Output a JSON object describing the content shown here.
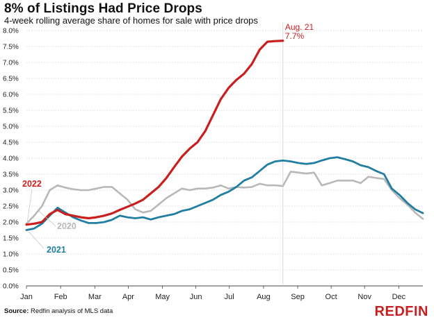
{
  "header": {
    "title": "8% of Listings Had Price Drops",
    "subtitle": "4-week rolling average share of homes for sale with price drops"
  },
  "footer": {
    "source_label": "Source:",
    "source_text": " Redfin analysis of MLS data",
    "logo_text": "REDFIN"
  },
  "colors": {
    "2022": "#c81e1e",
    "2021": "#1f7ea1",
    "2020": "#b8b8b8",
    "grid": "#d0d0d0",
    "axis": "#444444"
  },
  "chart_data": {
    "type": "line",
    "title": "8% of Listings Had Price Drops",
    "subtitle": "4-week rolling average share of homes for sale with price drops",
    "xlabel": "",
    "ylabel": "",
    "x_unit": "week_of_year",
    "xlim": [
      1,
      52
    ],
    "ylim": [
      0,
      8
    ],
    "grid": true,
    "legend": "inline-labels",
    "x_ticks": [
      {
        "label": "Jan",
        "x": 1
      },
      {
        "label": "Feb",
        "x": 5.4
      },
      {
        "label": "Mar",
        "x": 9.8
      },
      {
        "label": "Apr",
        "x": 14.1
      },
      {
        "label": "May",
        "x": 18.5
      },
      {
        "label": "Jun",
        "x": 22.8
      },
      {
        "label": "Jul",
        "x": 27.1
      },
      {
        "label": "Aug",
        "x": 31.5
      },
      {
        "label": "Sep",
        "x": 35.9
      },
      {
        "label": "Oct",
        "x": 40.2
      },
      {
        "label": "Nov",
        "x": 44.5
      },
      {
        "label": "Dec",
        "x": 48.9
      }
    ],
    "y_ticks": [
      "0.0%",
      "0.5%",
      "1.0%",
      "1.5%",
      "2.0%",
      "2.5%",
      "3.0%",
      "3.5%",
      "4.0%",
      "4.5%",
      "5.0%",
      "5.5%",
      "6.0%",
      "6.5%",
      "7.0%",
      "7.5%",
      "8.0%"
    ],
    "y_tick_values": [
      0,
      0.5,
      1,
      1.5,
      2,
      2.5,
      3,
      3.5,
      4,
      4.5,
      5,
      5.5,
      6,
      6.5,
      7,
      7.5,
      8
    ],
    "series": [
      {
        "name": "2020",
        "color": "#b8b8b8",
        "points": [
          [
            1,
            1.95
          ],
          [
            2,
            2.2
          ],
          [
            3,
            2.5
          ],
          [
            4,
            3.0
          ],
          [
            5,
            3.15
          ],
          [
            6,
            3.08
          ],
          [
            7,
            3.03
          ],
          [
            8,
            3.0
          ],
          [
            9,
            3.0
          ],
          [
            10,
            3.05
          ],
          [
            11,
            3.1
          ],
          [
            12,
            3.1
          ],
          [
            13,
            2.9
          ],
          [
            14,
            2.7
          ],
          [
            15,
            2.4
          ],
          [
            16,
            2.3
          ],
          [
            17,
            2.35
          ],
          [
            18,
            2.55
          ],
          [
            19,
            2.75
          ],
          [
            20,
            2.9
          ],
          [
            21,
            3.05
          ],
          [
            22,
            3.0
          ],
          [
            23,
            3.05
          ],
          [
            24,
            3.05
          ],
          [
            25,
            3.08
          ],
          [
            26,
            3.15
          ],
          [
            27,
            3.05
          ],
          [
            28,
            3.1
          ],
          [
            29,
            3.08
          ],
          [
            30,
            3.1
          ],
          [
            31,
            3.2
          ],
          [
            32,
            3.15
          ],
          [
            33,
            3.15
          ],
          [
            34,
            3.13
          ],
          [
            35,
            3.58
          ],
          [
            36,
            3.55
          ],
          [
            37,
            3.52
          ],
          [
            38,
            3.55
          ],
          [
            39,
            3.15
          ],
          [
            40,
            3.22
          ],
          [
            41,
            3.3
          ],
          [
            42,
            3.3
          ],
          [
            43,
            3.3
          ],
          [
            44,
            3.22
          ],
          [
            45,
            3.42
          ],
          [
            46,
            3.38
          ],
          [
            47,
            3.35
          ],
          [
            48,
            3.0
          ],
          [
            49,
            2.75
          ],
          [
            50,
            2.55
          ],
          [
            51,
            2.3
          ],
          [
            52,
            2.1
          ]
        ]
      },
      {
        "name": "2021",
        "color": "#1f7ea1",
        "points": [
          [
            1,
            1.75
          ],
          [
            2,
            1.8
          ],
          [
            3,
            1.95
          ],
          [
            4,
            2.2
          ],
          [
            5,
            2.45
          ],
          [
            6,
            2.3
          ],
          [
            7,
            2.15
          ],
          [
            8,
            2.05
          ],
          [
            9,
            1.97
          ],
          [
            10,
            1.97
          ],
          [
            11,
            2.0
          ],
          [
            12,
            2.07
          ],
          [
            13,
            2.2
          ],
          [
            14,
            2.15
          ],
          [
            15,
            2.12
          ],
          [
            16,
            2.15
          ],
          [
            17,
            2.08
          ],
          [
            18,
            2.15
          ],
          [
            19,
            2.2
          ],
          [
            20,
            2.25
          ],
          [
            21,
            2.35
          ],
          [
            22,
            2.4
          ],
          [
            23,
            2.5
          ],
          [
            24,
            2.6
          ],
          [
            25,
            2.7
          ],
          [
            26,
            2.85
          ],
          [
            27,
            2.95
          ],
          [
            28,
            3.1
          ],
          [
            29,
            3.3
          ],
          [
            30,
            3.4
          ],
          [
            31,
            3.6
          ],
          [
            32,
            3.8
          ],
          [
            33,
            3.9
          ],
          [
            34,
            3.93
          ],
          [
            35,
            3.9
          ],
          [
            36,
            3.85
          ],
          [
            37,
            3.82
          ],
          [
            38,
            3.85
          ],
          [
            39,
            3.93
          ],
          [
            40,
            4.0
          ],
          [
            41,
            4.03
          ],
          [
            42,
            3.97
          ],
          [
            43,
            3.9
          ],
          [
            44,
            3.78
          ],
          [
            45,
            3.72
          ],
          [
            46,
            3.6
          ],
          [
            47,
            3.5
          ],
          [
            48,
            3.05
          ],
          [
            49,
            2.85
          ],
          [
            50,
            2.6
          ],
          [
            51,
            2.4
          ],
          [
            52,
            2.28
          ]
        ]
      },
      {
        "name": "2022",
        "color": "#c81e1e",
        "points": [
          [
            1,
            1.92
          ],
          [
            2,
            1.95
          ],
          [
            3,
            2.0
          ],
          [
            4,
            2.25
          ],
          [
            5,
            2.38
          ],
          [
            6,
            2.25
          ],
          [
            7,
            2.2
          ],
          [
            8,
            2.15
          ],
          [
            9,
            2.12
          ],
          [
            10,
            2.15
          ],
          [
            11,
            2.2
          ],
          [
            12,
            2.27
          ],
          [
            13,
            2.38
          ],
          [
            14,
            2.48
          ],
          [
            15,
            2.58
          ],
          [
            16,
            2.7
          ],
          [
            17,
            2.9
          ],
          [
            18,
            3.1
          ],
          [
            19,
            3.38
          ],
          [
            20,
            3.72
          ],
          [
            21,
            4.05
          ],
          [
            22,
            4.3
          ],
          [
            23,
            4.5
          ],
          [
            24,
            4.85
          ],
          [
            25,
            5.35
          ],
          [
            26,
            5.85
          ],
          [
            27,
            6.2
          ],
          [
            28,
            6.45
          ],
          [
            29,
            6.65
          ],
          [
            30,
            6.95
          ],
          [
            31,
            7.4
          ],
          [
            32,
            7.65
          ],
          [
            33,
            7.67
          ],
          [
            34,
            7.68
          ]
        ]
      }
    ],
    "series_labels": {
      "2022": "2022",
      "2021": "2021",
      "2020": "2020"
    },
    "annotation": {
      "x": 34,
      "y": 7.7,
      "date_label": "Aug. 21",
      "value_label": "7.7%"
    }
  }
}
